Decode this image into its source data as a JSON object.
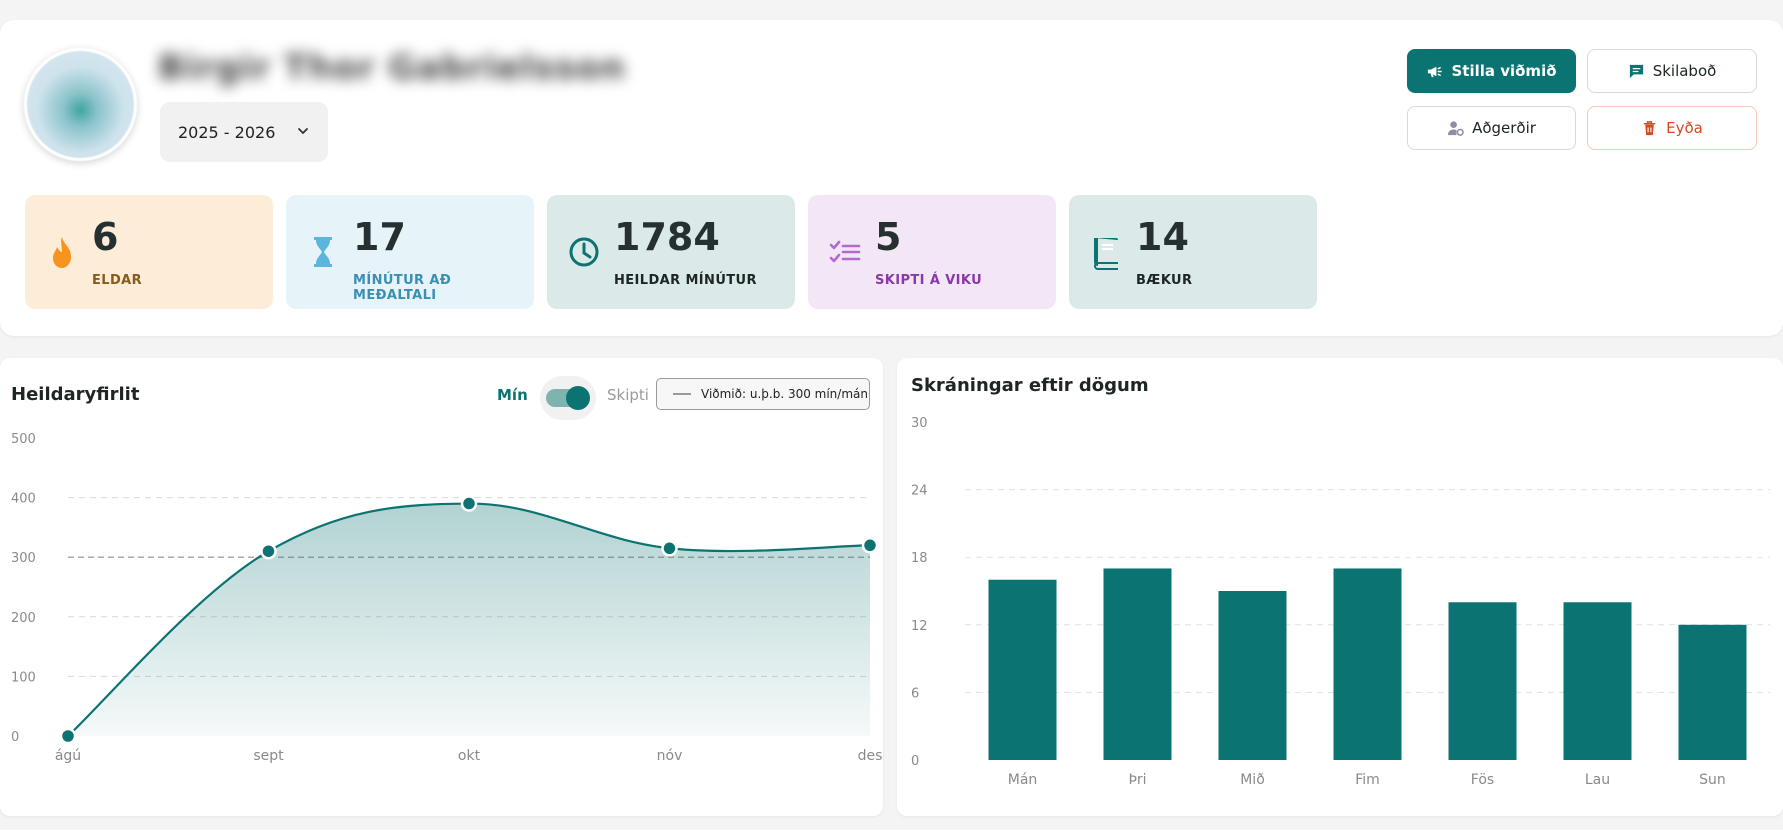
{
  "profile": {
    "name": "Birgir Thor Gabrielsson",
    "year_select": "2025 - 2026"
  },
  "actions": {
    "primary": "Stilla viðmið",
    "message": "Skilaboð",
    "actions": "Aðgerðir",
    "delete": "Eyða"
  },
  "stats": [
    {
      "value": "6",
      "label": "ELDAR",
      "icon": "flame-icon",
      "bg": "#fdecd8",
      "label_color": "#8a5a1a",
      "icon_color": "#f7941d"
    },
    {
      "value": "17",
      "label": "MÍNÚTUR AÐ MEÐALTALI",
      "icon": "hourglass-icon",
      "bg": "#e6f3f9",
      "label_color": "#3a8fb5",
      "icon_color": "#5bb5dd"
    },
    {
      "value": "1784",
      "label": "HEILDAR MÍNÚTUR",
      "icon": "clock-icon",
      "bg": "#dbe9e8",
      "label_color": "#1d2525",
      "icon_color": "#0b7371"
    },
    {
      "value": "5",
      "label": "SKIPTI Á VIKU",
      "icon": "checklist-icon",
      "bg": "#f3e6f7",
      "label_color": "#8a3aa8",
      "icon_color": "#b36ad0"
    },
    {
      "value": "14",
      "label": "BÆKUR",
      "icon": "book-icon",
      "bg": "#dbe9e8",
      "label_color": "#1d2525",
      "icon_color": "#0b7371"
    }
  ],
  "overview": {
    "title": "Heildaryfirlit",
    "toggle_left": "Mín",
    "toggle_right": "Skipti",
    "reference_label": "Viðmið: u.þ.b. 300 mín/mán"
  },
  "weekday_panel": {
    "title": "Skráningar eftir dögum"
  },
  "chart_data": [
    {
      "type": "area",
      "title": "Heildaryfirlit",
      "categories": [
        "ágú",
        "sept",
        "okt",
        "nóv",
        "des"
      ],
      "values": [
        0,
        310,
        390,
        315,
        320
      ],
      "ylim": [
        0,
        500
      ],
      "yticks": [
        0,
        100,
        200,
        300,
        400,
        500
      ],
      "reference_line": 300,
      "grid": true,
      "color": "#0b7371"
    },
    {
      "type": "bar",
      "title": "Skráningar eftir dögum",
      "categories": [
        "Mán",
        "Þri",
        "Mið",
        "Fim",
        "Fös",
        "Lau",
        "Sun"
      ],
      "values": [
        16,
        17,
        15,
        17,
        14,
        14,
        12
      ],
      "ylim": [
        0,
        30
      ],
      "yticks": [
        0,
        6,
        12,
        18,
        24,
        30
      ],
      "grid": true,
      "color": "#0b7371"
    }
  ]
}
